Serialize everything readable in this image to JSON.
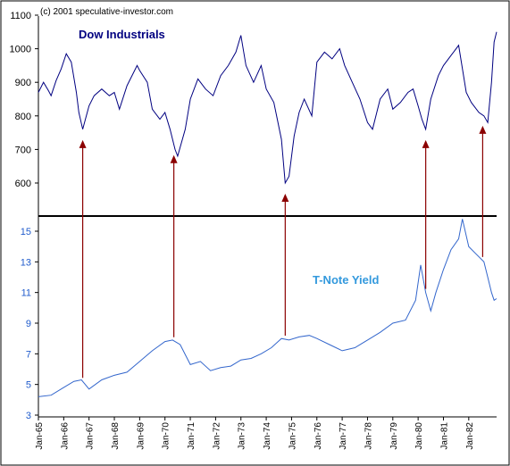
{
  "copyright": "(c) 2001 speculative-investor.com",
  "colors": {
    "dow_line": "#000080",
    "yield_line": "#3366cc",
    "arrow": "#8b0000",
    "top_axis_text": "#000000",
    "bottom_axis_text": "#1f5bcc",
    "title_dow": "#000080",
    "title_yield": "#3399dd"
  },
  "chart_data": [
    {
      "type": "line",
      "title": "Dow Industrials",
      "ylim": [
        500,
        1100
      ],
      "yticks": [
        {
          "value": 600,
          "label": "600"
        },
        {
          "value": 700,
          "label": "700"
        },
        {
          "value": 800,
          "label": "800"
        },
        {
          "value": 900,
          "label": "900"
        },
        {
          "value": 1000,
          "label": "1000"
        },
        {
          "value": 1100,
          "label": "1100"
        }
      ],
      "grid": false,
      "series": [
        {
          "name": "Dow Industrials",
          "x": [
            1965.0,
            1965.2,
            1965.4,
            1965.5,
            1965.7,
            1965.9,
            1966.1,
            1966.3,
            1966.5,
            1966.6,
            1966.75,
            1967.0,
            1967.2,
            1967.5,
            1967.8,
            1968.0,
            1968.2,
            1968.5,
            1968.9,
            1969.0,
            1969.3,
            1969.5,
            1969.8,
            1970.0,
            1970.2,
            1970.4,
            1970.5,
            1970.8,
            1971.0,
            1971.3,
            1971.6,
            1971.9,
            1972.2,
            1972.5,
            1972.8,
            1973.0,
            1973.2,
            1973.5,
            1973.8,
            1974.0,
            1974.3,
            1974.6,
            1974.75,
            1974.9,
            1975.1,
            1975.3,
            1975.5,
            1975.8,
            1976.0,
            1976.3,
            1976.6,
            1976.9,
            1977.1,
            1977.4,
            1977.7,
            1978.0,
            1978.2,
            1978.5,
            1978.8,
            1979.0,
            1979.3,
            1979.6,
            1979.8,
            1980.0,
            1980.15,
            1980.3,
            1980.5,
            1980.8,
            1981.0,
            1981.3,
            1981.6,
            1981.9,
            1982.1,
            1982.4,
            1982.6,
            1982.75,
            1982.9,
            1983.0,
            1983.1
          ],
          "values": [
            870,
            900,
            875,
            860,
            905,
            940,
            985,
            960,
            870,
            810,
            760,
            830,
            860,
            880,
            860,
            870,
            820,
            890,
            950,
            935,
            900,
            820,
            790,
            810,
            760,
            700,
            680,
            760,
            850,
            910,
            880,
            860,
            920,
            950,
            990,
            1040,
            950,
            900,
            950,
            880,
            840,
            730,
            600,
            620,
            740,
            810,
            850,
            800,
            960,
            990,
            970,
            1000,
            950,
            900,
            850,
            780,
            760,
            850,
            880,
            820,
            840,
            870,
            880,
            830,
            790,
            760,
            850,
            920,
            950,
            980,
            1010,
            870,
            840,
            810,
            800,
            780,
            900,
            1020,
            1050
          ]
        }
      ]
    },
    {
      "type": "line",
      "title": "T-Note Yield",
      "ylim": [
        3,
        17
      ],
      "yticks": [
        {
          "value": 3,
          "label": "3"
        },
        {
          "value": 5,
          "label": "5"
        },
        {
          "value": 7,
          "label": "7"
        },
        {
          "value": 9,
          "label": "9"
        },
        {
          "value": 11,
          "label": "11"
        },
        {
          "value": 13,
          "label": "13"
        },
        {
          "value": 15,
          "label": "15"
        }
      ],
      "xticks": [
        "Jan-65",
        "Jan-66",
        "Jan-67",
        "Jan-68",
        "Jan-69",
        "Jan-70",
        "Jan-71",
        "Jan-72",
        "Jan-73",
        "Jan-74",
        "Jan-75",
        "Jan-76",
        "Jan-77",
        "Jan-78",
        "Jan-79",
        "Jan-80",
        "Jan-81",
        "Jan-82"
      ],
      "grid": false,
      "series": [
        {
          "name": "T-Note Yield",
          "x": [
            1965.0,
            1965.5,
            1966.0,
            1966.4,
            1966.7,
            1967.0,
            1967.5,
            1968.0,
            1968.5,
            1969.0,
            1969.5,
            1970.0,
            1970.3,
            1970.6,
            1971.0,
            1971.4,
            1971.8,
            1972.2,
            1972.6,
            1973.0,
            1973.4,
            1973.8,
            1974.2,
            1974.6,
            1974.9,
            1975.3,
            1975.7,
            1976.0,
            1976.5,
            1977.0,
            1977.5,
            1978.0,
            1978.5,
            1979.0,
            1979.5,
            1979.9,
            1980.1,
            1980.3,
            1980.5,
            1980.7,
            1981.0,
            1981.3,
            1981.6,
            1981.75,
            1982.0,
            1982.3,
            1982.6,
            1982.75,
            1982.9,
            1983.0,
            1983.1
          ],
          "values": [
            4.2,
            4.3,
            4.8,
            5.2,
            5.3,
            4.7,
            5.3,
            5.6,
            5.8,
            6.5,
            7.2,
            7.8,
            7.9,
            7.6,
            6.3,
            6.5,
            5.9,
            6.1,
            6.2,
            6.6,
            6.7,
            7.0,
            7.4,
            8.0,
            7.9,
            8.1,
            8.2,
            8.0,
            7.6,
            7.2,
            7.4,
            7.9,
            8.4,
            9.0,
            9.2,
            10.5,
            12.8,
            11.0,
            9.8,
            11.0,
            12.5,
            13.8,
            14.5,
            15.8,
            14.0,
            13.5,
            13.0,
            12.0,
            11.0,
            10.5,
            10.6
          ]
        }
      ]
    }
  ],
  "arrows": [
    1966.75,
    1970.35,
    1974.75,
    1980.3,
    1982.55
  ]
}
